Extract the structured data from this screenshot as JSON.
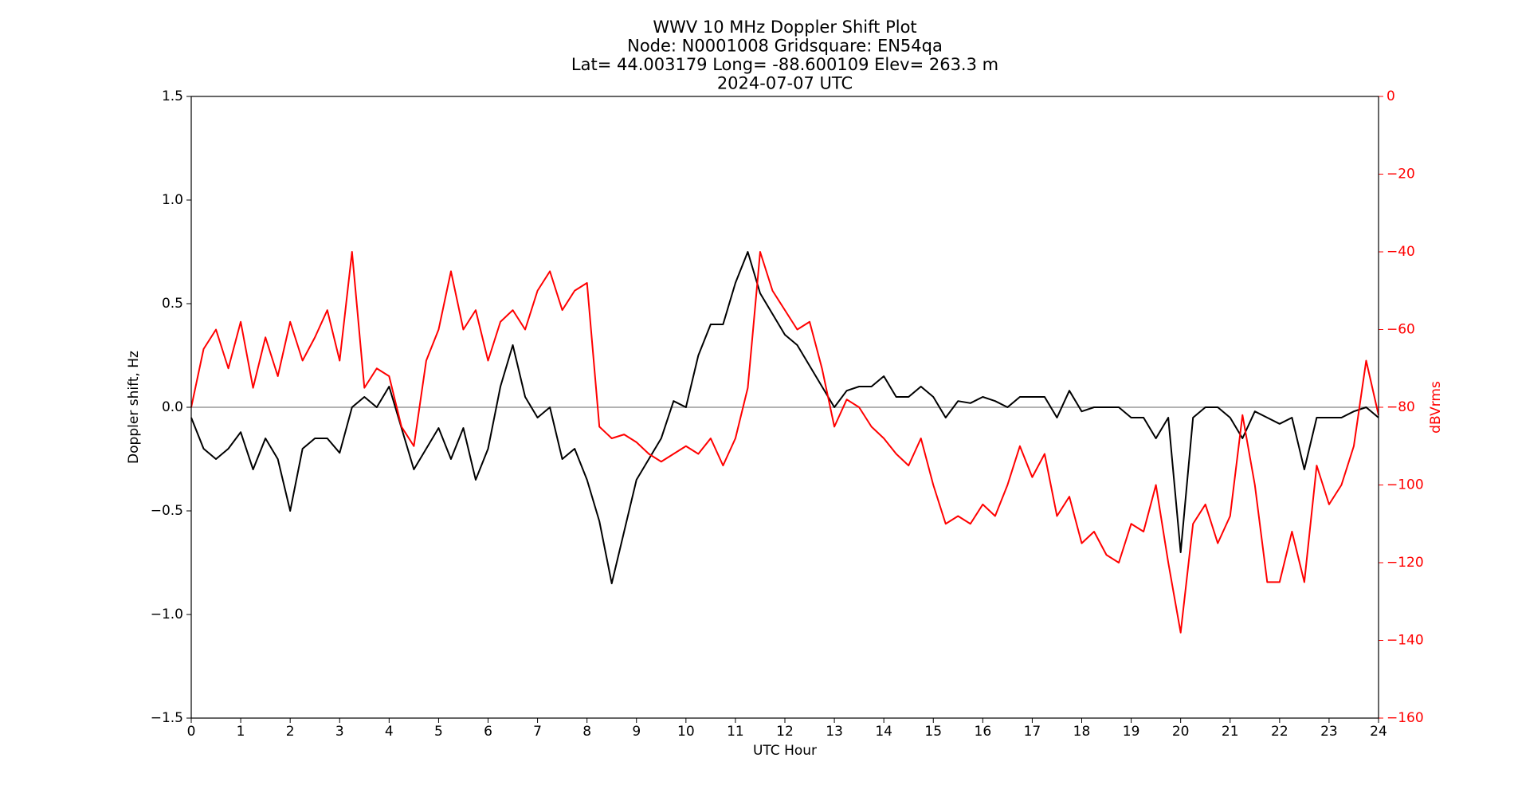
{
  "chart_data": {
    "type": "line",
    "title": [
      "WWV 10 MHz Doppler Shift Plot",
      "Node:  N0001008     Gridsquare:  EN54qa",
      "Lat= 44.003179    Long= -88.600109    Elev= 263.3 m",
      "2024-07-07  UTC"
    ],
    "xlabel": "UTC Hour",
    "ylabel": "Doppler shift, Hz",
    "y2label": "dBVrms",
    "xlim": [
      0,
      24
    ],
    "xticks": [
      0,
      1,
      2,
      3,
      4,
      5,
      6,
      7,
      8,
      9,
      10,
      11,
      12,
      13,
      14,
      15,
      16,
      17,
      18,
      19,
      20,
      21,
      22,
      23,
      24
    ],
    "ylim": [
      -1.5,
      1.5
    ],
    "yticks": [
      {
        "value": -1.5,
        "label": "−1.5"
      },
      {
        "value": -1.0,
        "label": "−1.0"
      },
      {
        "value": -0.5,
        "label": "−0.5"
      },
      {
        "value": 0,
        "label": "0.0"
      },
      0.5,
      {
        "value": 1.0,
        "label": "1.0"
      },
      1.5
    ],
    "y2lim": [
      -160,
      0
    ],
    "y2ticks": [
      {
        "value": -160,
        "label": "−160"
      },
      {
        "value": -140,
        "label": "−140"
      },
      {
        "value": -120,
        "label": "−120"
      },
      {
        "value": -100,
        "label": "−100"
      },
      {
        "value": -80,
        "label": "−80"
      },
      {
        "value": -60,
        "label": "−60"
      },
      {
        "value": -40,
        "label": "−40"
      },
      {
        "value": -20,
        "label": "−20"
      },
      0
    ],
    "y2color": "#ff0000",
    "zero_line_color": "#999999",
    "x": [
      0,
      0.25,
      0.5,
      0.75,
      1,
      1.25,
      1.5,
      1.75,
      2,
      2.25,
      2.5,
      2.75,
      3,
      3.25,
      3.5,
      3.75,
      4,
      4.25,
      4.5,
      4.75,
      5,
      5.25,
      5.5,
      5.75,
      6,
      6.25,
      6.5,
      6.75,
      7,
      7.25,
      7.5,
      7.75,
      8,
      8.25,
      8.5,
      8.75,
      9,
      9.25,
      9.5,
      9.75,
      10,
      10.25,
      10.5,
      10.75,
      11,
      11.25,
      11.5,
      11.75,
      12,
      12.25,
      12.5,
      12.75,
      13,
      13.25,
      13.5,
      13.75,
      14,
      14.25,
      14.5,
      14.75,
      15,
      15.25,
      15.5,
      15.75,
      16,
      16.25,
      16.5,
      16.75,
      17,
      17.25,
      17.5,
      17.75,
      18,
      18.25,
      18.5,
      18.75,
      19,
      19.25,
      19.5,
      19.75,
      20,
      20.25,
      20.5,
      20.75,
      21,
      21.25,
      21.5,
      21.75,
      22,
      22.25,
      22.5,
      22.75,
      23,
      23.25,
      23.5,
      23.75,
      24
    ],
    "series": [
      {
        "color": "#000000",
        "values": [
          -0.05,
          -0.2,
          -0.25,
          -0.2,
          -0.12,
          -0.3,
          -0.15,
          -0.25,
          -0.5,
          -0.2,
          -0.15,
          -0.15,
          -0.22,
          0.0,
          0.05,
          0.0,
          0.1,
          -0.1,
          -0.3,
          -0.2,
          -0.1,
          -0.25,
          -0.1,
          -0.35,
          -0.2,
          0.1,
          0.3,
          0.05,
          -0.05,
          0.0,
          -0.25,
          -0.2,
          -0.35,
          -0.55,
          -0.85,
          -0.6,
          -0.35,
          -0.25,
          -0.15,
          0.03,
          0.0,
          0.25,
          0.4,
          0.4,
          0.6,
          0.75,
          0.55,
          0.45,
          0.35,
          0.3,
          0.2,
          0.1,
          0.0,
          0.08,
          0.1,
          0.1,
          0.15,
          0.05,
          0.05,
          0.1,
          0.05,
          -0.05,
          0.03,
          0.02,
          0.05,
          0.03,
          0.0,
          0.05,
          0.05,
          0.05,
          -0.05,
          0.08,
          -0.02,
          0.0,
          0.0,
          0.0,
          -0.05,
          -0.05,
          -0.15,
          -0.05,
          -0.7,
          -0.05,
          0.0,
          0.0,
          -0.05,
          -0.15,
          -0.02,
          -0.05,
          -0.08,
          -0.05,
          -0.3,
          -0.05,
          -0.05,
          -0.05,
          -0.02,
          0.0,
          -0.05
        ]
      },
      {
        "color": "#ff0000",
        "axis": "y2",
        "values": [
          -80,
          -65,
          -60,
          -70,
          -58,
          -75,
          -62,
          -72,
          -58,
          -68,
          -62,
          -55,
          -68,
          -40,
          -75,
          -70,
          -72,
          -85,
          -90,
          -68,
          -60,
          -45,
          -60,
          -55,
          -68,
          -58,
          -55,
          -60,
          -50,
          -45,
          -55,
          -50,
          -48,
          -85,
          -88,
          -87,
          -89,
          -92,
          -94,
          -92,
          -90,
          -92,
          -88,
          -95,
          -88,
          -75,
          -40,
          -50,
          -55,
          -60,
          -58,
          -70,
          -85,
          -78,
          -80,
          -85,
          -88,
          -92,
          -95,
          -88,
          -100,
          -110,
          -108,
          -110,
          -105,
          -108,
          -100,
          -90,
          -98,
          -92,
          -108,
          -103,
          -115,
          -112,
          -118,
          -120,
          -110,
          -112,
          -100,
          -120,
          -138,
          -110,
          -105,
          -115,
          -108,
          -82,
          -100,
          -125,
          -125,
          -112,
          -125,
          -95,
          -105,
          -100,
          -90,
          -68,
          -82
        ]
      }
    ]
  }
}
